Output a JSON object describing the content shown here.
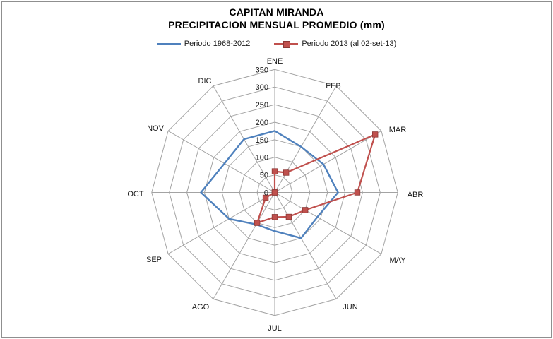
{
  "title": {
    "line1": "CAPITAN MIRANDA",
    "line2": "PRECIPITACION MENSUAL PROMEDIO (mm)"
  },
  "legend": [
    {
      "label": "Periodo 1968-2012",
      "color": "#4F81BD",
      "marker": "none"
    },
    {
      "label": "Periodo 2013 (al 02-set-13)",
      "color": "#C0504D",
      "marker": "square"
    }
  ],
  "chart_data": {
    "type": "radar",
    "title": "CAPITAN MIRANDA — PRECIPITACION MENSUAL PROMEDIO (mm)",
    "categories": [
      "ENE",
      "FEB",
      "MAR",
      "ABR",
      "MAY",
      "JUN",
      "JUL",
      "AGO",
      "SEP",
      "OCT",
      "NOV",
      "DIC"
    ],
    "series": [
      {
        "name": "Periodo 1968-2012",
        "color": "#4F81BD",
        "marker": "none",
        "values": [
          175,
          150,
          160,
          180,
          140,
          150,
          110,
          105,
          150,
          210,
          165,
          175
        ]
      },
      {
        "name": "Periodo 2013 (al 02-set-13)",
        "color": "#C0504D",
        "marker": "square",
        "marker_border_color": "#8C3836",
        "values": [
          60,
          65,
          330,
          235,
          100,
          80,
          70,
          100,
          30,
          0,
          0,
          0
        ]
      }
    ],
    "radial_axis": {
      "min": 0,
      "max": 350,
      "step": 50,
      "tick_labels": [
        "0",
        "50",
        "100",
        "150",
        "200",
        "250",
        "300",
        "350"
      ]
    },
    "grid": "polygon",
    "grid_color": "#A3A3A3",
    "legend_position": "top"
  }
}
